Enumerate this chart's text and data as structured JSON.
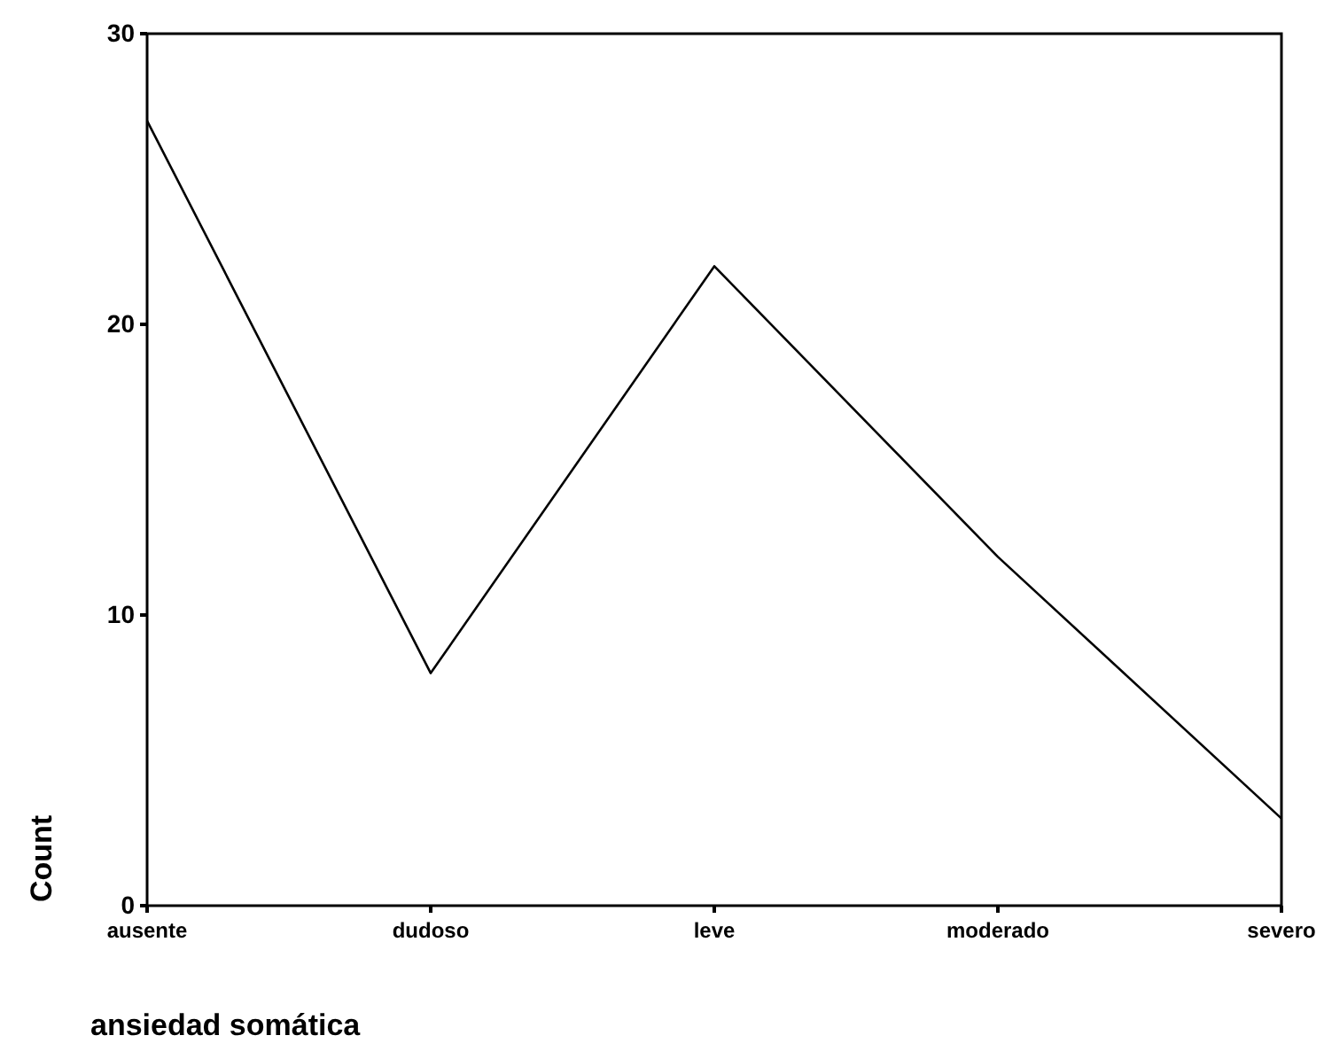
{
  "chart_data": {
    "type": "line",
    "xlabel": "ansiedad somática",
    "ylabel": "Count",
    "categories": [
      "ausente",
      "dudoso",
      "leve",
      "moderado",
      "severo"
    ],
    "series": [
      {
        "color": "#000000",
        "values": [
          27,
          8,
          22,
          12,
          3
        ]
      }
    ],
    "ylim": [
      0,
      30
    ],
    "yticks": [
      0,
      10,
      20,
      30
    ],
    "grid": false,
    "marker": "none",
    "line_style": "solid"
  }
}
